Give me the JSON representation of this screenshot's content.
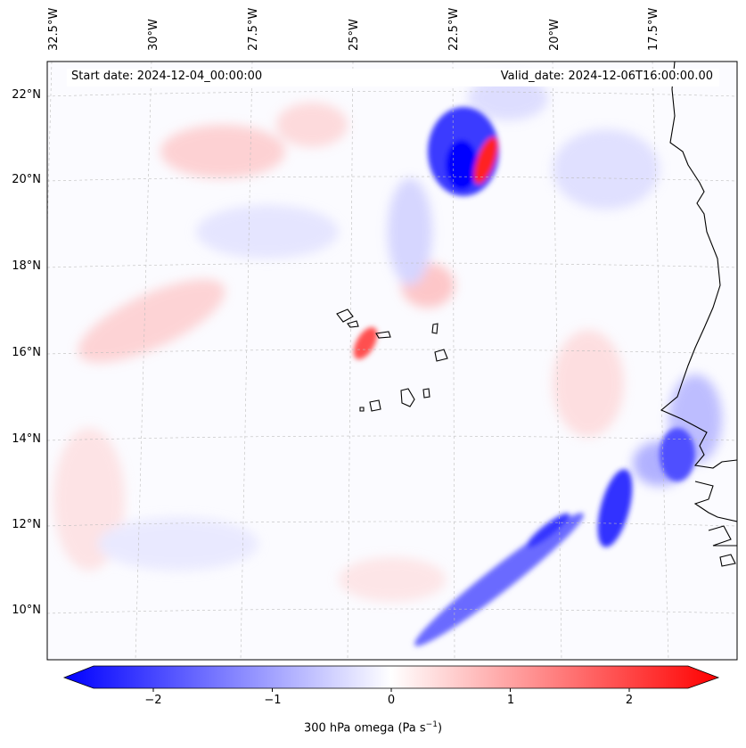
{
  "header": {
    "start_date": "Start date: 2024-12-04_00:00:00",
    "valid_date": "Valid_date: 2024-12-06T16:00:00.00"
  },
  "map": {
    "lon_ticks": [
      "32.5°W",
      "30°W",
      "27.5°W",
      "25°W",
      "22.5°W",
      "20°W",
      "17.5°W"
    ],
    "lat_ticks": [
      "22°N",
      "20°N",
      "18°N",
      "16°N",
      "14°N",
      "12°N",
      "10°N"
    ],
    "colors": {
      "negative": "#0000ff",
      "neutral": "#ffffff",
      "positive": "#ff0000",
      "coast": "#000000"
    }
  },
  "colorbar": {
    "ticks": [
      "−2",
      "−1",
      "0",
      "1",
      "2"
    ],
    "tick_values": [
      -2,
      -1,
      0,
      1,
      2
    ],
    "range": [
      -2.5,
      2.5
    ],
    "label_main": "300 hPa omega (Pa s",
    "label_sup": "−1",
    "label_end": ")"
  }
}
